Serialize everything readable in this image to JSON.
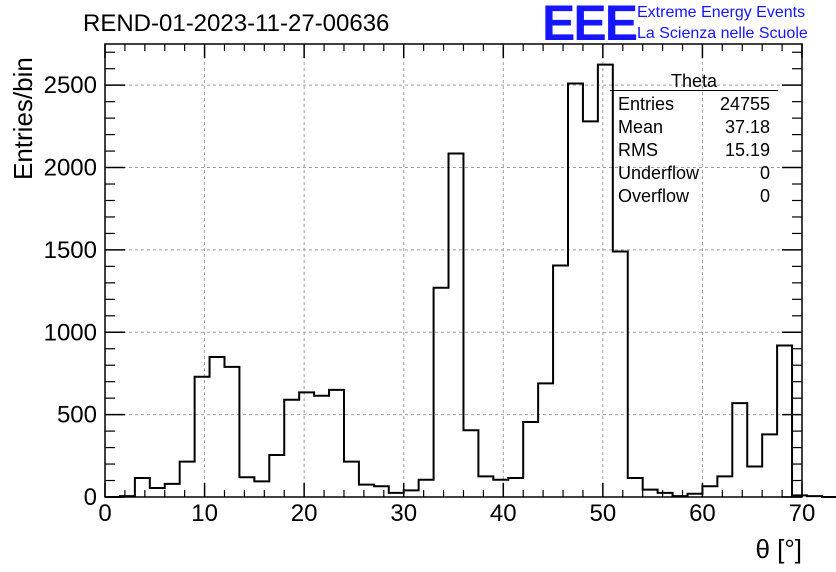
{
  "title": "REND-01-2023-11-27-00636",
  "logo": {
    "mark": "EEE",
    "line1": "Extreme Energy Events",
    "line2": "La Scienza nelle Scuole",
    "color": "#1515ff"
  },
  "stats_box": {
    "title": "Theta",
    "rows": [
      {
        "label": "Entries",
        "value": "24755"
      },
      {
        "label": "Mean",
        "value": "37.18"
      },
      {
        "label": "RMS",
        "value": "15.19"
      },
      {
        "label": "Underflow",
        "value": "0"
      },
      {
        "label": "Overflow",
        "value": "0"
      }
    ]
  },
  "chart_data": {
    "type": "bar",
    "style": "step-histogram",
    "title": "REND-01-2023-11-27-00636",
    "xlabel": "θ [°]",
    "ylabel": "Entries/bin",
    "xlim": [
      0,
      70
    ],
    "ylim": [
      0,
      2750
    ],
    "grid": true,
    "x_ticks": [
      0,
      10,
      20,
      30,
      40,
      50,
      60,
      70
    ],
    "y_ticks": [
      0,
      500,
      1000,
      1500,
      2000,
      2500
    ],
    "bin_width": 1.5,
    "bin_start": 0,
    "values": [
      0,
      5,
      115,
      55,
      80,
      215,
      730,
      850,
      790,
      120,
      95,
      255,
      590,
      635,
      615,
      650,
      215,
      75,
      65,
      25,
      40,
      105,
      1270,
      2085,
      405,
      125,
      105,
      115,
      455,
      690,
      1405,
      2510,
      2280,
      2625,
      1490,
      115,
      45,
      25,
      5,
      20,
      65,
      125,
      570,
      185,
      380,
      920,
      10,
      5,
      0
    ],
    "line_color": "#000000"
  }
}
